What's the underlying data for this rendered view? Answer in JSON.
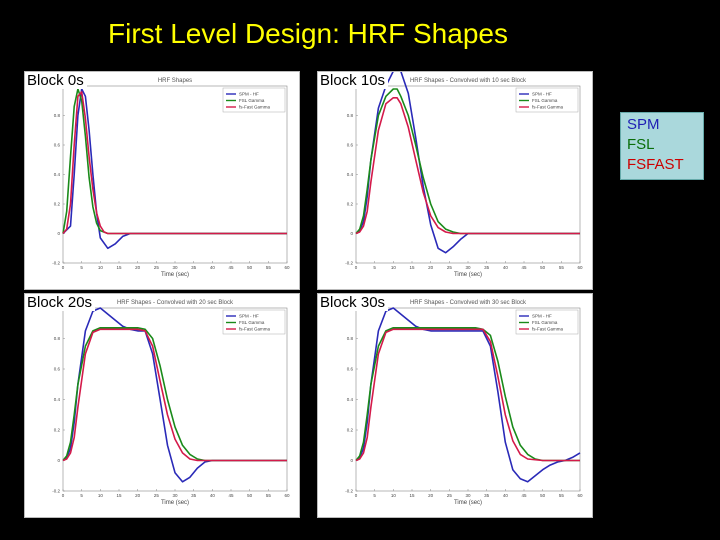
{
  "slide": {
    "title": "First Level Design: HRF Shapes"
  },
  "legend_box": {
    "items": [
      {
        "label": "SPM",
        "color": "#1f1fb4"
      },
      {
        "label": "FSL",
        "color": "#0a6e0a"
      },
      {
        "label": "FSFAST",
        "color": "#cc0000"
      }
    ]
  },
  "panels": [
    {
      "label": "Block 0s",
      "block": 0
    },
    {
      "label": "Block 10s",
      "block": 10
    },
    {
      "label": "Block 20s",
      "block": 20
    },
    {
      "label": "Block 30s",
      "block": 30
    }
  ],
  "chart_data": [
    {
      "type": "line",
      "title": "HRF Shapes",
      "xlabel": "Time (sec)",
      "xlim": [
        0,
        60
      ],
      "ylim": [
        -0.2,
        1.0
      ],
      "xticks": [
        0,
        5,
        10,
        15,
        20,
        25,
        30,
        35,
        40,
        45,
        50,
        55,
        60
      ],
      "yticks": [
        -0.2,
        0,
        0.2,
        0.4,
        0.6,
        0.8,
        1.0
      ],
      "legend": {
        "position": "top-right",
        "entries": [
          "SPM - HF",
          "FSL Gamma",
          "fs-Fast Gamma"
        ]
      },
      "series": [
        {
          "name": "SPM - HF",
          "color": "#2a2ab8",
          "x": [
            0,
            2,
            3,
            4,
            5,
            6,
            7,
            8,
            9,
            10,
            12,
            14,
            16,
            18,
            20,
            25,
            30,
            60
          ],
          "y": [
            0,
            0.05,
            0.4,
            0.8,
            0.98,
            0.93,
            0.7,
            0.4,
            0.14,
            -0.03,
            -0.1,
            -0.07,
            -0.02,
            0,
            0,
            0,
            0,
            0
          ]
        },
        {
          "name": "FSL Gamma",
          "color": "#1a8a1a",
          "x": [
            0,
            1,
            2,
            3,
            4,
            5,
            6,
            7,
            8,
            9,
            10,
            12,
            14,
            60
          ],
          "y": [
            0,
            0.15,
            0.52,
            0.86,
            0.98,
            0.9,
            0.66,
            0.38,
            0.18,
            0.07,
            0.02,
            0,
            0,
            0
          ]
        },
        {
          "name": "fs-Fast Gamma",
          "color": "#d41a4a",
          "x": [
            0,
            1,
            2,
            3,
            4,
            5,
            6,
            7,
            8,
            9,
            10,
            11,
            12,
            14,
            60
          ],
          "y": [
            0,
            0.03,
            0.2,
            0.6,
            0.93,
            0.96,
            0.78,
            0.52,
            0.3,
            0.14,
            0.05,
            0.01,
            0,
            0,
            0
          ]
        }
      ]
    },
    {
      "type": "line",
      "title": "HRF Shapes - Convolved with 10 sec Block",
      "xlabel": "Time (sec)",
      "xlim": [
        0,
        60
      ],
      "ylim": [
        -0.2,
        1.0
      ],
      "xticks": [
        0,
        5,
        10,
        15,
        20,
        25,
        30,
        35,
        40,
        45,
        50,
        55,
        60
      ],
      "yticks": [
        -0.2,
        0,
        0.2,
        0.4,
        0.6,
        0.8,
        1.0
      ],
      "legend": {
        "position": "top-right",
        "entries": [
          "SPM - HF",
          "FSL Gamma",
          "fs-Fast Gamma"
        ]
      },
      "series": [
        {
          "name": "SPM - HF",
          "color": "#2a2ab8",
          "x": [
            0,
            1,
            2,
            3,
            4,
            6,
            8,
            10,
            11,
            12,
            14,
            16,
            18,
            20,
            22,
            24,
            26,
            28,
            30,
            34,
            38,
            60
          ],
          "y": [
            0,
            0.02,
            0.08,
            0.25,
            0.5,
            0.85,
            1.0,
            1.1,
            1.13,
            1.1,
            0.95,
            0.65,
            0.32,
            0.06,
            -0.1,
            -0.13,
            -0.09,
            -0.04,
            0,
            0,
            0,
            0
          ]
        },
        {
          "name": "FSL Gamma",
          "color": "#1a8a1a",
          "x": [
            0,
            1,
            2,
            3,
            4,
            6,
            8,
            10,
            11,
            12,
            14,
            16,
            18,
            20,
            22,
            24,
            26,
            28,
            30,
            34,
            60
          ],
          "y": [
            0,
            0.03,
            0.12,
            0.3,
            0.5,
            0.8,
            0.93,
            0.98,
            0.98,
            0.93,
            0.8,
            0.6,
            0.38,
            0.2,
            0.08,
            0.03,
            0.01,
            0,
            0,
            0,
            0
          ]
        },
        {
          "name": "fs-Fast Gamma",
          "color": "#d41a4a",
          "x": [
            0,
            1,
            2,
            3,
            4,
            6,
            8,
            10,
            11,
            12,
            14,
            16,
            18,
            20,
            22,
            24,
            26,
            28,
            30,
            34,
            60
          ],
          "y": [
            0,
            0.01,
            0.05,
            0.15,
            0.35,
            0.7,
            0.88,
            0.92,
            0.92,
            0.88,
            0.72,
            0.5,
            0.28,
            0.12,
            0.04,
            0.01,
            0,
            0,
            0,
            0,
            0
          ]
        }
      ]
    },
    {
      "type": "line",
      "title": "HRF Shapes - Convolved with 20 sec Block",
      "xlabel": "Time (sec)",
      "xlim": [
        0,
        60
      ],
      "ylim": [
        -0.2,
        1.0
      ],
      "xticks": [
        0,
        5,
        10,
        15,
        20,
        25,
        30,
        35,
        40,
        45,
        50,
        55,
        60
      ],
      "yticks": [
        -0.2,
        0,
        0.2,
        0.4,
        0.6,
        0.8,
        1.0
      ],
      "legend": {
        "position": "top-right",
        "entries": [
          "SPM - HF",
          "FSL Gamma",
          "fs-Fast Gamma"
        ]
      },
      "series": [
        {
          "name": "SPM - HF",
          "color": "#2a2ab8",
          "x": [
            0,
            1,
            2,
            3,
            4,
            6,
            8,
            10,
            12,
            14,
            16,
            18,
            20,
            22,
            24,
            26,
            28,
            30,
            32,
            34,
            36,
            38,
            40,
            44,
            60
          ],
          "y": [
            0,
            0.02,
            0.08,
            0.25,
            0.5,
            0.85,
            0.98,
            1.0,
            0.96,
            0.92,
            0.88,
            0.86,
            0.85,
            0.85,
            0.7,
            0.4,
            0.1,
            -0.08,
            -0.14,
            -0.11,
            -0.05,
            -0.01,
            0,
            0,
            0
          ]
        },
        {
          "name": "FSL Gamma",
          "color": "#1a8a1a",
          "x": [
            0,
            1,
            2,
            3,
            4,
            6,
            8,
            10,
            12,
            14,
            16,
            18,
            20,
            22,
            24,
            26,
            28,
            30,
            32,
            34,
            36,
            38,
            40,
            60
          ],
          "y": [
            0,
            0.03,
            0.12,
            0.3,
            0.5,
            0.75,
            0.85,
            0.87,
            0.87,
            0.87,
            0.87,
            0.87,
            0.87,
            0.86,
            0.8,
            0.62,
            0.4,
            0.22,
            0.1,
            0.04,
            0.01,
            0,
            0,
            0
          ]
        },
        {
          "name": "fs-Fast Gamma",
          "color": "#d41a4a",
          "x": [
            0,
            1,
            2,
            3,
            4,
            6,
            8,
            10,
            12,
            14,
            16,
            18,
            20,
            22,
            24,
            26,
            28,
            30,
            32,
            34,
            36,
            40,
            60
          ],
          "y": [
            0,
            0.01,
            0.05,
            0.15,
            0.35,
            0.7,
            0.84,
            0.86,
            0.86,
            0.86,
            0.86,
            0.86,
            0.86,
            0.85,
            0.75,
            0.52,
            0.3,
            0.14,
            0.05,
            0.01,
            0,
            0,
            0
          ]
        }
      ]
    },
    {
      "type": "line",
      "title": "HRF Shapes - Convolved with 30 sec Block",
      "xlabel": "Time (sec)",
      "xlim": [
        0,
        60
      ],
      "ylim": [
        -0.2,
        1.0
      ],
      "xticks": [
        0,
        5,
        10,
        15,
        20,
        25,
        30,
        35,
        40,
        45,
        50,
        55,
        60
      ],
      "yticks": [
        -0.2,
        0,
        0.2,
        0.4,
        0.6,
        0.8,
        1.0
      ],
      "legend": {
        "position": "top-right",
        "entries": [
          "SPM - HF",
          "FSL Gamma",
          "fs-Fast Gamma"
        ]
      },
      "series": [
        {
          "name": "SPM - HF",
          "color": "#2a2ab8",
          "x": [
            0,
            1,
            2,
            3,
            4,
            6,
            8,
            10,
            12,
            14,
            16,
            18,
            20,
            22,
            24,
            26,
            28,
            30,
            32,
            34,
            36,
            38,
            40,
            42,
            44,
            46,
            48,
            50,
            52,
            54,
            56,
            58,
            60
          ],
          "y": [
            0,
            0.02,
            0.08,
            0.25,
            0.5,
            0.85,
            0.98,
            1.0,
            0.96,
            0.92,
            0.88,
            0.86,
            0.85,
            0.85,
            0.85,
            0.85,
            0.85,
            0.85,
            0.85,
            0.85,
            0.75,
            0.45,
            0.12,
            -0.06,
            -0.12,
            -0.14,
            -0.1,
            -0.06,
            -0.03,
            -0.01,
            0,
            0.02,
            0.05
          ]
        },
        {
          "name": "FSL Gamma",
          "color": "#1a8a1a",
          "x": [
            0,
            1,
            2,
            3,
            4,
            6,
            8,
            10,
            12,
            14,
            16,
            18,
            20,
            22,
            24,
            26,
            28,
            30,
            32,
            34,
            36,
            38,
            40,
            42,
            44,
            46,
            48,
            50,
            60
          ],
          "y": [
            0,
            0.03,
            0.12,
            0.3,
            0.5,
            0.75,
            0.85,
            0.87,
            0.87,
            0.87,
            0.87,
            0.87,
            0.87,
            0.87,
            0.87,
            0.87,
            0.87,
            0.87,
            0.87,
            0.86,
            0.82,
            0.65,
            0.42,
            0.22,
            0.1,
            0.04,
            0.01,
            0,
            0
          ]
        },
        {
          "name": "fs-Fast Gamma",
          "color": "#d41a4a",
          "x": [
            0,
            1,
            2,
            3,
            4,
            6,
            8,
            10,
            12,
            14,
            16,
            18,
            20,
            22,
            24,
            26,
            28,
            30,
            32,
            34,
            36,
            38,
            40,
            42,
            44,
            46,
            50,
            60
          ],
          "y": [
            0,
            0.01,
            0.05,
            0.15,
            0.35,
            0.7,
            0.84,
            0.86,
            0.86,
            0.86,
            0.86,
            0.86,
            0.86,
            0.86,
            0.86,
            0.86,
            0.86,
            0.86,
            0.86,
            0.86,
            0.78,
            0.55,
            0.3,
            0.13,
            0.04,
            0.01,
            0,
            0
          ]
        }
      ]
    }
  ]
}
